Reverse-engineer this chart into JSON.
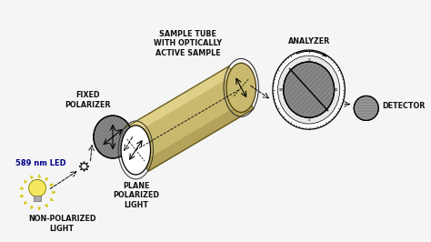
{
  "bg_color": "#f5f5f5",
  "labels": {
    "led": "589 nm LED",
    "non_polarized": "NON-POLARIZED\nLIGHT",
    "fixed_polarizer": "FIXED\nPOLARIZER",
    "plane_polarized": "PLANE\nPOLARIZED\nLIGHT",
    "sample_tube": "SAMPLE TUBE\nWITH OPTICALLY\nACTIVE SAMPLE",
    "analyzer": "ANALYZER",
    "detector": "DETECTOR"
  },
  "colors": {
    "bg": "#f5f5f5",
    "tube_fill": "#c8b96e",
    "tube_highlight": "#e8d890",
    "tube_shadow": "#9a8840",
    "disk_gray": "#888888",
    "disk_hatch": "#555555",
    "white": "#ffffff",
    "black": "#000000",
    "led_yellow": "#f0e030",
    "led_body": "#f5e860",
    "led_base": "#b0b0b0",
    "ray_color": "#d8cb20",
    "label_color": "#111111",
    "led_label_color": "#00008B",
    "arrow_dashed": "#333333"
  },
  "font_sizes": {
    "label": 5.8,
    "led_label": 6.0
  },
  "layout": {
    "xlim": [
      0,
      10
    ],
    "ylim": [
      0,
      5.6
    ]
  }
}
